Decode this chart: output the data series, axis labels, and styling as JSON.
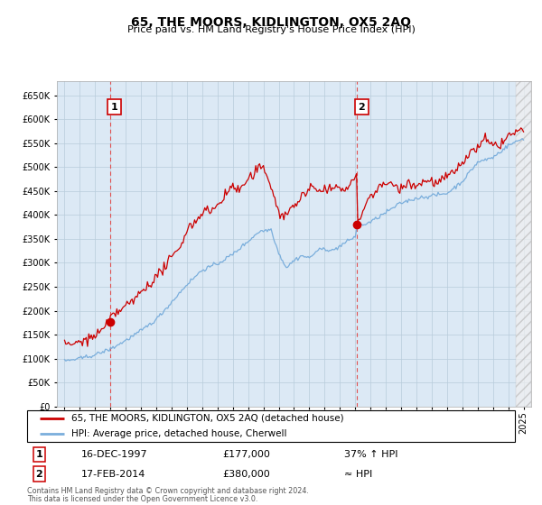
{
  "title": "65, THE MOORS, KIDLINGTON, OX5 2AQ",
  "subtitle": "Price paid vs. HM Land Registry's House Price Index (HPI)",
  "background_color": "#dce9f5",
  "hpi_color": "#7aaedc",
  "price_color": "#cc0000",
  "vline_color": "#e05050",
  "sale1_x": 1997.96,
  "sale1_y": 177000,
  "sale2_x": 2014.12,
  "sale2_y": 380000,
  "ylabel_ticks": [
    0,
    50000,
    100000,
    150000,
    200000,
    250000,
    300000,
    350000,
    400000,
    450000,
    500000,
    550000,
    600000,
    650000
  ],
  "ylim": [
    0,
    680000
  ],
  "xlim_start": 1994.5,
  "xlim_end": 2025.5,
  "footer_line1": "Contains HM Land Registry data © Crown copyright and database right 2024.",
  "footer_line2": "This data is licensed under the Open Government Licence v3.0.",
  "legend_line1": "65, THE MOORS, KIDLINGTON, OX5 2AQ (detached house)",
  "legend_line2": "HPI: Average price, detached house, Cherwell",
  "table_row1": [
    "1",
    "16-DEC-1997",
    "£177,000",
    "37% ↑ HPI"
  ],
  "table_row2": [
    "2",
    "17-FEB-2014",
    "£380,000",
    "≈ HPI"
  ]
}
